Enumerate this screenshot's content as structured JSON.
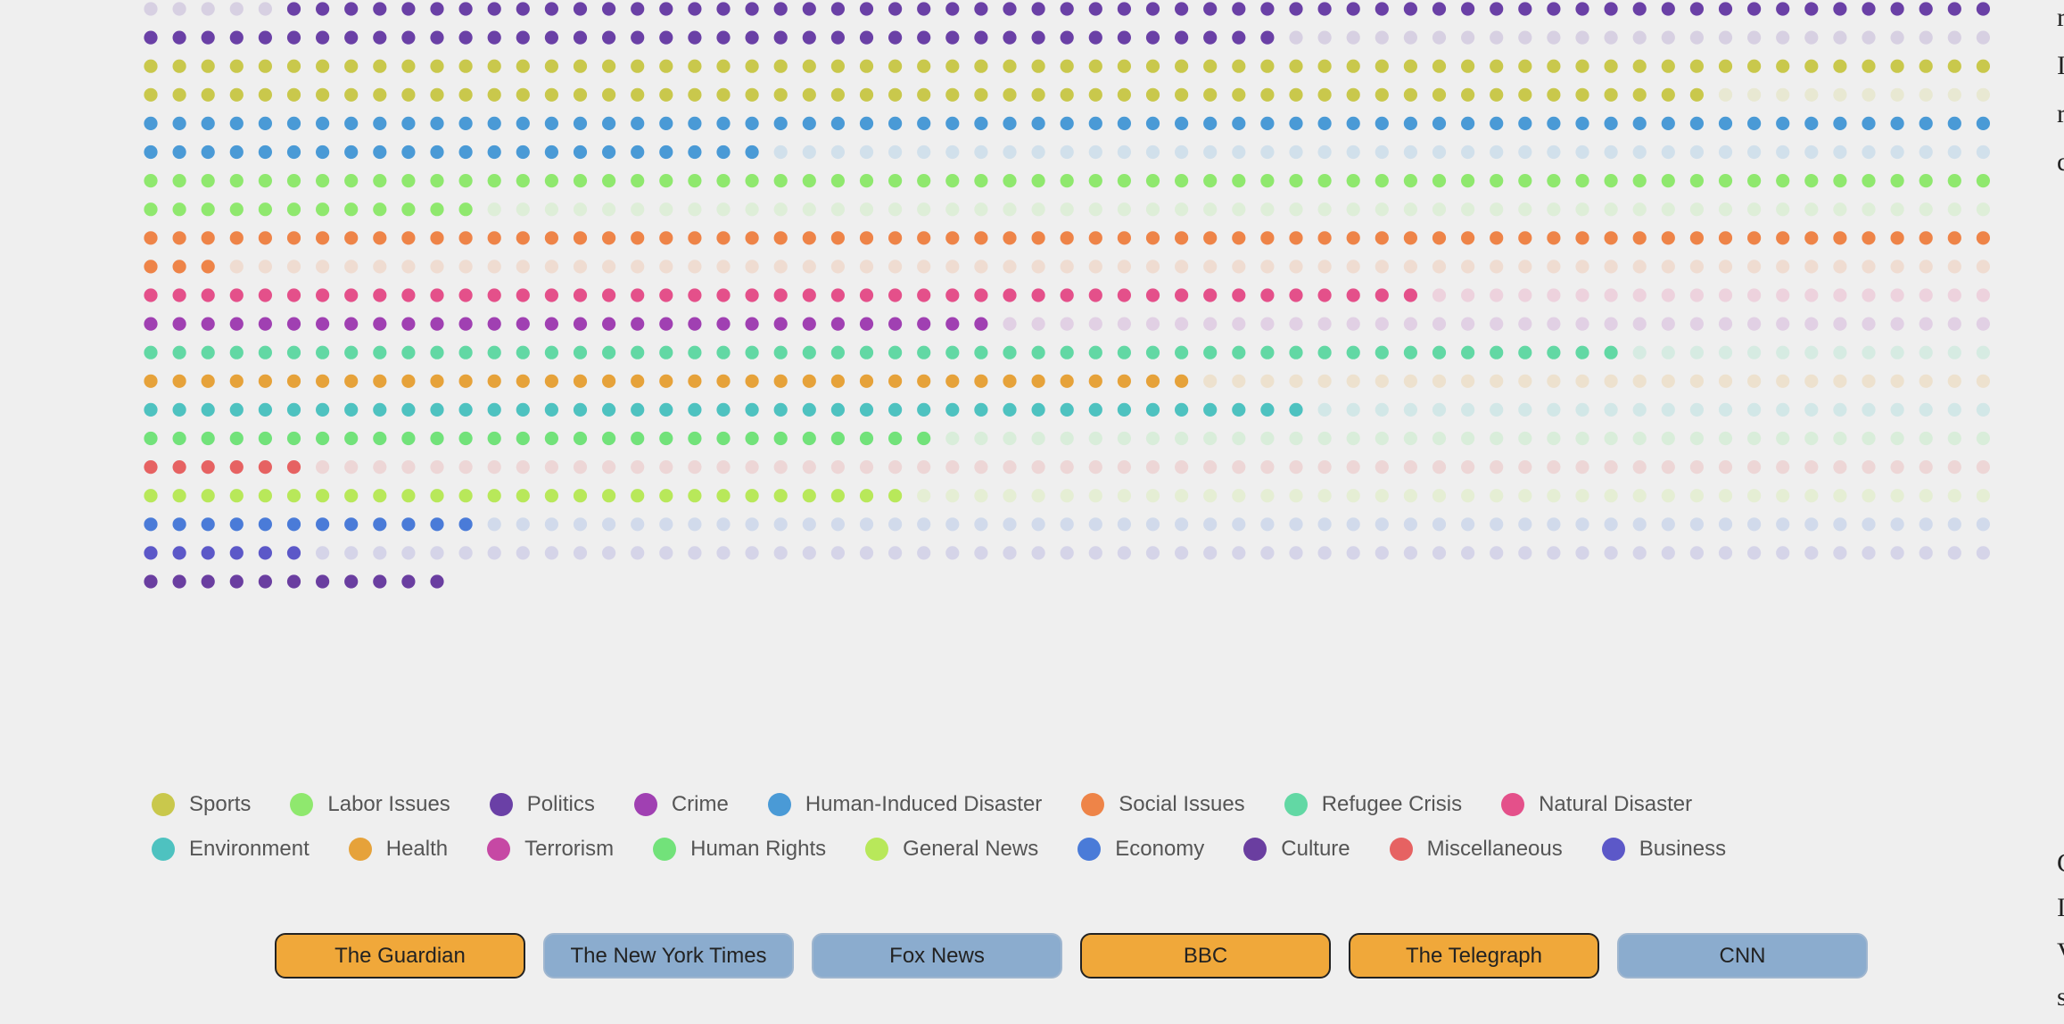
{
  "chart_data": {
    "type": "waffle",
    "columns": 65,
    "unit": "one dot per article",
    "partial_top_gray": 5,
    "categories": [
      {
        "name": "Politics",
        "color": "#6a40a6",
        "count": 100
      },
      {
        "name": "Sports",
        "color": "#c9c84c",
        "count": 120
      },
      {
        "name": "Human-Induced Disaster",
        "color": "#4a9ad6",
        "count": 87
      },
      {
        "name": "Labor Issues",
        "color": "#8fe86e",
        "count": 77
      },
      {
        "name": "Social Issues",
        "color": "#ee8448",
        "count": 68
      },
      {
        "name": "Natural Disaster",
        "color": "#e4508a",
        "count": 45
      },
      {
        "name": "Crime",
        "color": "#a040b2",
        "count": 30
      },
      {
        "name": "Refugee Crisis",
        "color": "#62d8a4",
        "count": 52
      },
      {
        "name": "Health",
        "color": "#e6a23a",
        "count": 37
      },
      {
        "name": "Environment",
        "color": "#4ec2c0",
        "count": 41
      },
      {
        "name": "Human Rights",
        "color": "#72e27a",
        "count": 28
      },
      {
        "name": "Miscellaneous",
        "color": "#e66262",
        "count": 6
      },
      {
        "name": "General News",
        "color": "#b8e85a",
        "count": 27
      },
      {
        "name": "Economy",
        "color": "#4a7bd8",
        "count": 12
      },
      {
        "name": "Business",
        "color": "#5c58c8",
        "count": 6
      },
      {
        "name": "Culture",
        "color": "#6a3ea0",
        "count": 11
      }
    ]
  },
  "legend": {
    "items": [
      {
        "label": "Sports",
        "color": "#c9c84c"
      },
      {
        "label": "Labor Issues",
        "color": "#8fe86e"
      },
      {
        "label": "Politics",
        "color": "#6a40a6"
      },
      {
        "label": "Crime",
        "color": "#a040b2"
      },
      {
        "label": "Human-Induced Disaster",
        "color": "#4a9ad6"
      },
      {
        "label": "Social Issues",
        "color": "#ee8448"
      },
      {
        "label": "Refugee Crisis",
        "color": "#62d8a4"
      },
      {
        "label": "Natural Disaster",
        "color": "#e4508a"
      },
      {
        "label": "Environment",
        "color": "#4ec2c0"
      },
      {
        "label": "Health",
        "color": "#e6a23a"
      },
      {
        "label": "Terrorism",
        "color": "#c648a4"
      },
      {
        "label": "Human Rights",
        "color": "#72e27a"
      },
      {
        "label": "General News",
        "color": "#b8e85a"
      },
      {
        "label": "Economy",
        "color": "#4a7bd8"
      },
      {
        "label": "Culture",
        "color": "#6a3ea0"
      },
      {
        "label": "Miscellaneous",
        "color": "#e66262"
      },
      {
        "label": "Business",
        "color": "#5c58c8"
      }
    ]
  },
  "sources": {
    "buttons": [
      {
        "label": "The Guardian",
        "state": "active"
      },
      {
        "label": "The New York Times",
        "state": "inactive"
      },
      {
        "label": "Fox News",
        "state": "inactive"
      },
      {
        "label": "BBC",
        "state": "active"
      },
      {
        "label": "The Telegraph",
        "state": "active"
      },
      {
        "label": "CNN",
        "state": "inactive"
      }
    ]
  },
  "side_text": {
    "top": [
      "r",
      "I",
      "r",
      "c"
    ],
    "bottom": [
      "C",
      "I",
      "V",
      "s"
    ]
  }
}
